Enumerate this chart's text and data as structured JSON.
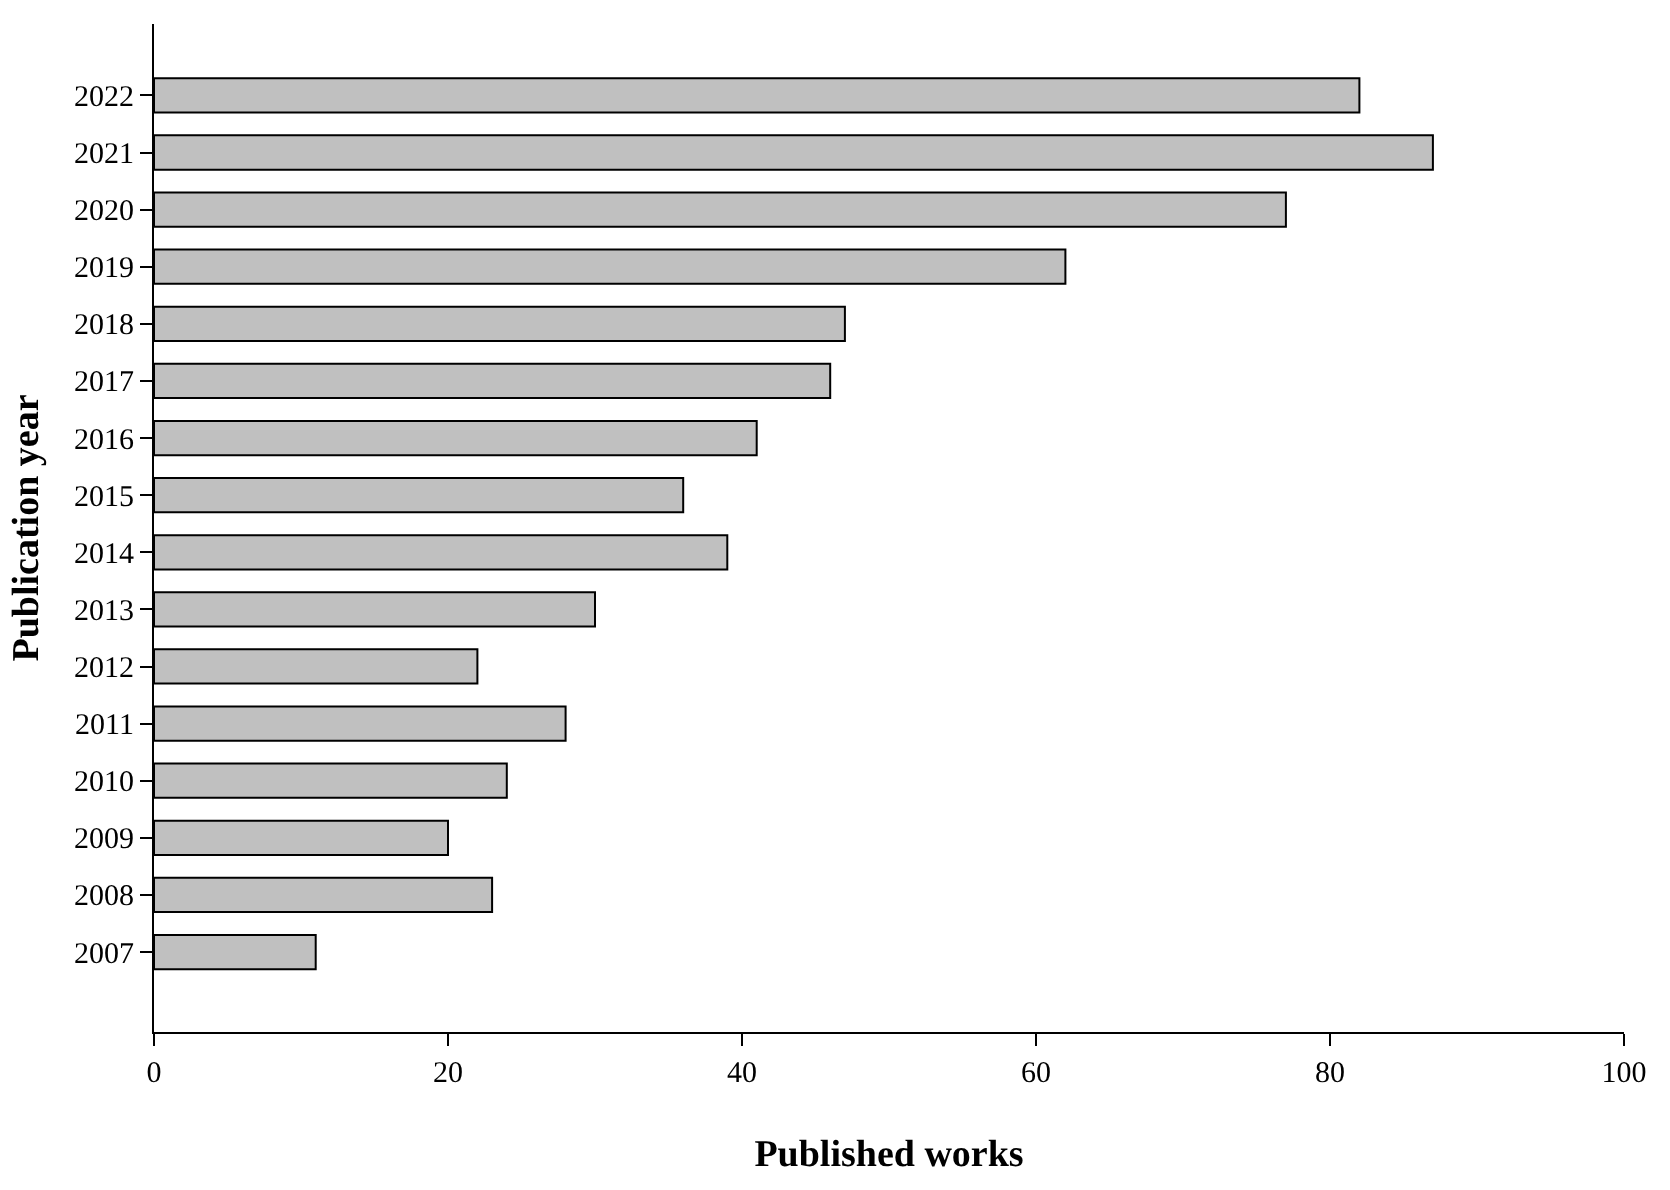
{
  "chart_data": {
    "type": "bar",
    "orientation": "horizontal",
    "xlabel": "Published works",
    "ylabel": "Publication year",
    "categories": [
      "2022",
      "2021",
      "2020",
      "2019",
      "2018",
      "2017",
      "2016",
      "2015",
      "2014",
      "2013",
      "2012",
      "2011",
      "2010",
      "2009",
      "2008",
      "2007"
    ],
    "values": [
      82,
      87,
      77,
      62,
      47,
      46,
      41,
      36,
      39,
      30,
      22,
      28,
      24,
      20,
      23,
      11
    ],
    "color": "#c0c0c0",
    "xlim": [
      0,
      100
    ],
    "xticks": [
      0,
      20,
      40,
      60,
      80,
      100
    ]
  }
}
